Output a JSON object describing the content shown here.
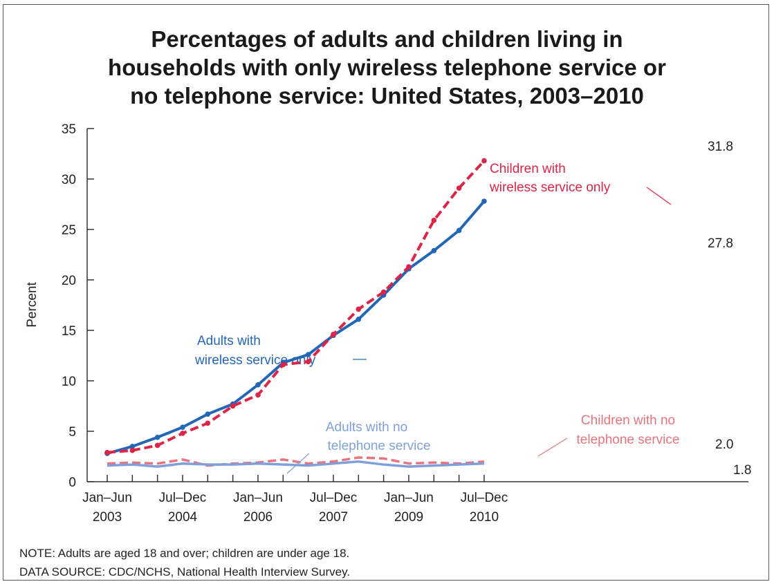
{
  "title_lines": [
    "Percentages of adults and children living in",
    "households with only wireless telephone service or",
    "no telephone service: United States, 2003–2010"
  ],
  "notes": {
    "note": "NOTE: Adults are aged 18 and over; children are under age 18.",
    "source": "DATA SOURCE: CDC/NCHS, National Health Interview Survey."
  },
  "chart_data": {
    "type": "line",
    "ylabel": "Percent",
    "ylim": [
      0,
      35
    ],
    "yticks": [
      0,
      5,
      10,
      15,
      20,
      25,
      30,
      35
    ],
    "x_tick_labels": [
      {
        "index": 0,
        "lines": [
          "Jan–Jun",
          "2003"
        ]
      },
      {
        "index": 3,
        "lines": [
          "Jul–Dec",
          "2004"
        ]
      },
      {
        "index": 6,
        "lines": [
          "Jan–Jun",
          "2006"
        ]
      },
      {
        "index": 9,
        "lines": [
          "Jul–Dec",
          "2007"
        ]
      },
      {
        "index": 12,
        "lines": [
          "Jan–Jun",
          "2009"
        ]
      },
      {
        "index": 15,
        "lines": [
          "Jul–Dec",
          "2010"
        ]
      }
    ],
    "x": [
      "Jan–Jun 2003",
      "Jul–Dec 2003",
      "Jan–Jun 2004",
      "Jul–Dec 2004",
      "Jan–Jun 2005",
      "Jul–Dec 2005",
      "Jan–Jun 2006",
      "Jul–Dec 2006",
      "Jan–Jun 2007",
      "Jul–Dec 2007",
      "Jan–Jun 2008",
      "Jul–Dec 2008",
      "Jan–Jun 2009",
      "Jul–Dec 2009",
      "Jan–Jun 2010",
      "Jul–Dec 2010"
    ],
    "grid": false,
    "series": [
      {
        "name": "Children with no telephone service",
        "label_lines": [
          "Children with no",
          "telephone service"
        ],
        "color": "#e8747d",
        "style": "dashed",
        "markers": false,
        "values": [
          1.8,
          1.9,
          1.8,
          2.2,
          1.6,
          1.8,
          1.9,
          2.2,
          1.8,
          2.0,
          2.4,
          2.3,
          1.8,
          1.9,
          1.8,
          2.0
        ],
        "end_label": "2.0"
      },
      {
        "name": "Adults with no telephone service",
        "label_lines": [
          "Adults with no",
          "telephone service"
        ],
        "color": "#7f9fdc",
        "style": "solid",
        "markers": false,
        "values": [
          1.6,
          1.7,
          1.5,
          1.8,
          1.7,
          1.7,
          1.8,
          1.7,
          1.6,
          1.8,
          2.0,
          1.7,
          1.5,
          1.6,
          1.7,
          1.8
        ],
        "end_label": "1.8"
      },
      {
        "name": "Adults with wireless service only",
        "label_lines": [
          "Adults with",
          "wireless service only"
        ],
        "color": "#2266b8",
        "style": "solid",
        "markers": true,
        "values": [
          2.8,
          3.5,
          4.4,
          5.4,
          6.7,
          7.7,
          9.6,
          11.8,
          12.6,
          14.5,
          16.1,
          18.5,
          21.1,
          22.9,
          24.9,
          27.8
        ],
        "end_label": "27.8"
      },
      {
        "name": "Children with wireless service only",
        "label_lines": [
          "Children with",
          "wireless service only"
        ],
        "color": "#dd2448",
        "style": "dashed",
        "markers": true,
        "values": [
          2.9,
          3.1,
          3.6,
          4.8,
          5.8,
          7.5,
          8.6,
          11.6,
          11.9,
          14.6,
          17.1,
          18.8,
          21.3,
          25.9,
          29.1,
          31.8
        ],
        "end_label": "31.8"
      }
    ]
  }
}
